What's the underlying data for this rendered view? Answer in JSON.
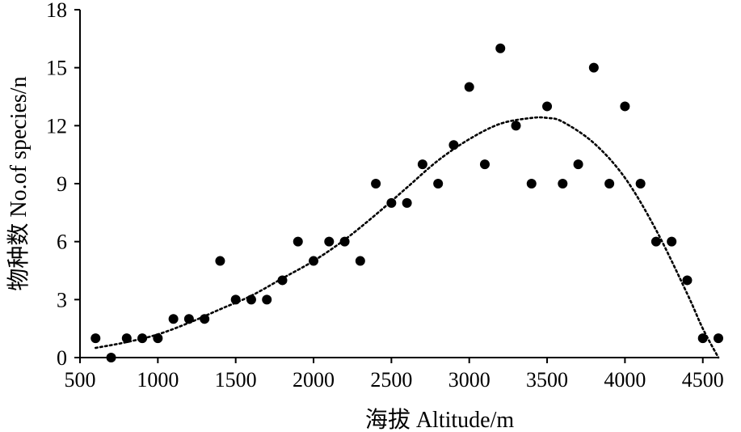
{
  "chart_data": {
    "type": "scatter",
    "xlabel": "海拔 Altitude/m",
    "ylabel": "物种数 No.of species/n",
    "xlim": [
      500,
      4600
    ],
    "ylim": [
      0,
      18
    ],
    "x_ticks": [
      500,
      1000,
      1500,
      2000,
      2500,
      3000,
      3500,
      4000,
      4500
    ],
    "y_ticks": [
      0,
      3,
      6,
      9,
      12,
      15,
      18
    ],
    "grid": false,
    "legend": "none",
    "marker_color": "#000000",
    "trendline": {
      "style": "dotted",
      "color": "#000000",
      "x": [
        600,
        800,
        1000,
        1200,
        1400,
        1600,
        1800,
        2000,
        2200,
        2400,
        2600,
        2800,
        3000,
        3200,
        3400,
        3500,
        3600,
        3800,
        4000,
        4200,
        4400,
        4500,
        4600
      ],
      "y": [
        0.5,
        0.8,
        1.2,
        1.8,
        2.5,
        3.2,
        4.1,
        5.0,
        6.1,
        7.4,
        8.8,
        10.2,
        11.3,
        12.1,
        12.4,
        12.4,
        12.2,
        11.1,
        9.3,
        6.6,
        3.3,
        1.5,
        0.0
      ]
    },
    "series": [
      {
        "x": [
          600,
          700,
          800,
          900,
          1000,
          1100,
          1200,
          1300,
          1400,
          1500,
          1600,
          1700,
          1800,
          1900,
          2000,
          2100,
          2200,
          2300,
          2400,
          2500,
          2600,
          2700,
          2800,
          2900,
          3000,
          3100,
          3200,
          3300,
          3400,
          3500,
          3600,
          3700,
          3800,
          3900,
          4000,
          4100,
          4200,
          4300,
          4400,
          4500,
          4600
        ],
        "y": [
          1,
          0,
          1,
          1,
          1,
          2,
          2,
          2,
          5,
          3,
          3,
          3,
          4,
          6,
          5,
          6,
          6,
          5,
          9,
          8,
          8,
          10,
          9,
          11,
          14,
          10,
          16,
          12,
          9,
          13,
          9,
          10,
          15,
          9,
          13,
          9,
          6,
          6,
          4,
          1,
          1
        ]
      }
    ]
  }
}
